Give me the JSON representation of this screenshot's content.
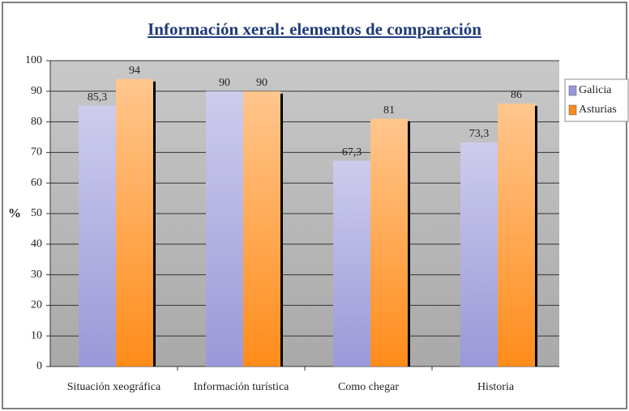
{
  "chart_data": {
    "type": "bar",
    "title": "Información xeral: elementos de comparación",
    "y_label": "%",
    "categories": [
      "Situación xeográfica",
      "Información turística",
      "Como chegar",
      "Historia"
    ],
    "series": [
      {
        "name": "Galicia",
        "color": "#9a98d8",
        "values": [
          85.3,
          90,
          67.3,
          73.3
        ],
        "value_labels": [
          "85,3",
          "90",
          "67,3",
          "73,3"
        ]
      },
      {
        "name": "Asturias",
        "color": "#ff8c1a",
        "values": [
          94,
          90,
          81,
          86
        ],
        "value_labels": [
          "94",
          "90",
          "81",
          "86"
        ]
      }
    ],
    "ylim": [
      0,
      100
    ],
    "yticks": [
      0,
      10,
      20,
      30,
      40,
      50,
      60,
      70,
      80,
      90,
      100
    ],
    "grid": true,
    "legend": "right"
  }
}
